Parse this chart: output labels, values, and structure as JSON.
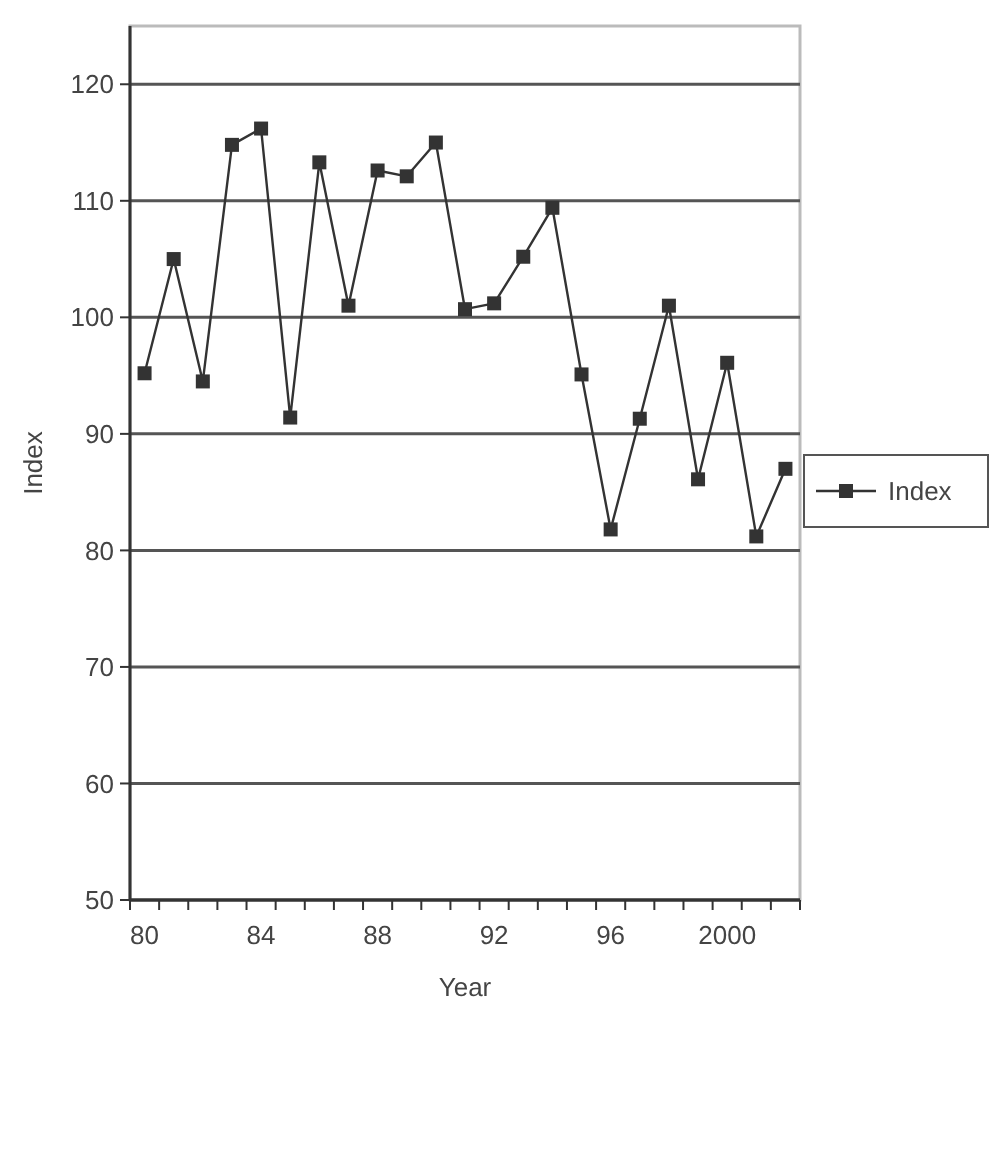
{
  "chart_data": {
    "type": "line",
    "xlabel": "Year",
    "ylabel": "Index",
    "categories": [
      "80",
      null,
      null,
      null,
      "84",
      null,
      null,
      null,
      "88",
      null,
      null,
      null,
      "92",
      null,
      null,
      null,
      "96",
      null,
      null,
      null,
      "2000",
      null,
      null
    ],
    "series": [
      {
        "name": "Index",
        "color": "#333333",
        "values": [
          95.2,
          105,
          94.5,
          114.8,
          116.2,
          91.4,
          113.3,
          101,
          112.6,
          112.1,
          115,
          100.7,
          101.2,
          105.2,
          109.4,
          95.1,
          81.8,
          91.3,
          101,
          86.1,
          96.1,
          81.2,
          87
        ]
      }
    ],
    "ylim": [
      50,
      125
    ],
    "yticks": [
      50,
      60,
      70,
      80,
      90,
      100,
      110,
      120
    ],
    "grid": "y",
    "legend": "right",
    "marker": "square",
    "line_style": "solid"
  }
}
